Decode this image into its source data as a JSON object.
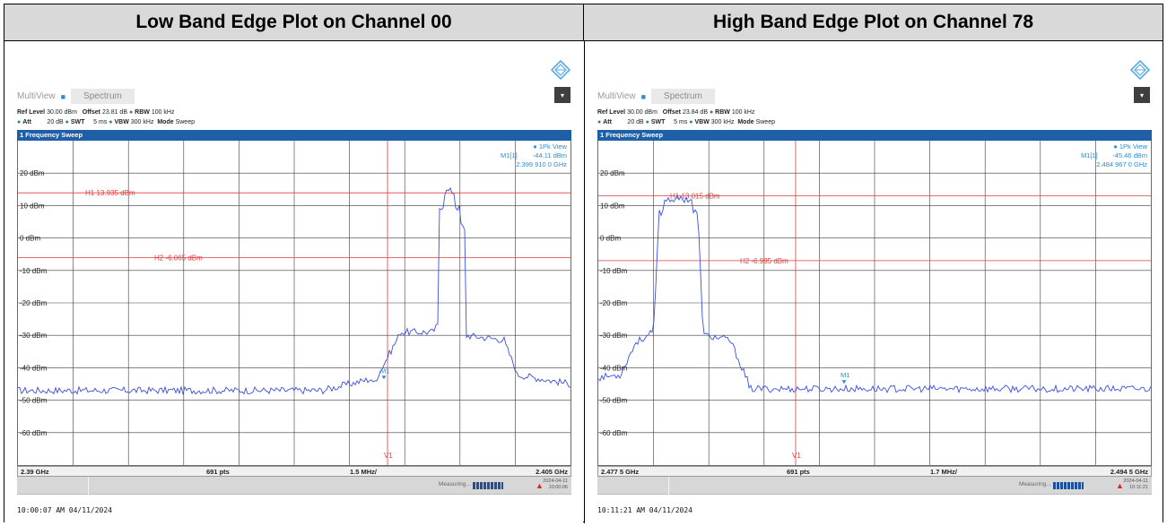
{
  "headers": {
    "left": "Low Band Edge Plot on Channel 00",
    "right": "High Band Edge Plot on Channel 78"
  },
  "panels": [
    {
      "multiview_label": "MultiView",
      "spectrum_tab": "Spectrum",
      "params_line1": {
        "ref_level_label": "Ref Level",
        "ref_level": "30.00 dBm",
        "offset_label": "Offset",
        "offset": "23.81 dB",
        "rbw_label": "RBW",
        "rbw": "100 kHz"
      },
      "params_line2": {
        "att_label": "Att",
        "att": "20 dB",
        "swt_label": "SWT",
        "swt": "5 ms",
        "vbw_label": "VBW",
        "vbw": "300 kHz",
        "mode_label": "Mode",
        "mode": "Sweep"
      },
      "sweep_title": "1 Frequency Sweep",
      "view_label": "1Pk View",
      "marker": {
        "name": "M1[1]",
        "level": "-44.11 dBm",
        "freq": "2.399 910 0 GHz",
        "label": "M1"
      },
      "h1": "H1 13.935 dBm",
      "h2": "H2 -6.065 dBm",
      "v1": "V1",
      "y_labels": [
        "20 dBm",
        "10 dBm",
        "0 dBm",
        "-10 dBm",
        "-20 dBm",
        "-30 dBm",
        "-40 dBm",
        "-50 dBm",
        "-60 dBm"
      ],
      "footer": {
        "start": "2.39 GHz",
        "pts": "691 pts",
        "span": "1.5 MHz/",
        "stop": "2.405 GHz"
      },
      "status": {
        "measuring": "Measuring...",
        "date": "2024-04-11",
        "time": "10:00:06"
      },
      "timestamp": "10:00:07 AM  04/11/2024"
    },
    {
      "multiview_label": "MultiView",
      "spectrum_tab": "Spectrum",
      "params_line1": {
        "ref_level_label": "Ref Level",
        "ref_level": "30.00 dBm",
        "offset_label": "Offset",
        "offset": "23.84 dB",
        "rbw_label": "RBW",
        "rbw": "100 kHz"
      },
      "params_line2": {
        "att_label": "Att",
        "att": "20 dB",
        "swt_label": "SWT",
        "swt": "5 ms",
        "vbw_label": "VBW",
        "vbw": "300 kHz",
        "mode_label": "Mode",
        "mode": "Sweep"
      },
      "sweep_title": "1 Frequency Sweep",
      "view_label": "1Pk View",
      "marker": {
        "name": "M1[1]",
        "level": "-45.46 dBm",
        "freq": "2.484 967 0 GHz",
        "label": "M1"
      },
      "h1": "H1 13.015 dBm",
      "h2": "H2 -6.985 dBm",
      "v1": "V1",
      "y_labels": [
        "20 dBm",
        "10 dBm",
        "0 dBm",
        "-10 dBm",
        "-20 dBm",
        "-30 dBm",
        "-40 dBm",
        "-50 dBm",
        "-60 dBm"
      ],
      "footer": {
        "start": "2.477 5 GHz",
        "pts": "691 pts",
        "span": "1.7 MHz/",
        "stop": "2.494 5 GHz"
      },
      "status": {
        "measuring": "Measuring...",
        "date": "2024-04-11",
        "time": "10:11:21"
      },
      "timestamp": "10:11:21 AM  04/11/2024"
    }
  ],
  "colors": {
    "trace": "#3b4fe0",
    "limit": "#e53b3b",
    "accent": "#1f5fa8",
    "marker": "#2a8bd6"
  }
}
